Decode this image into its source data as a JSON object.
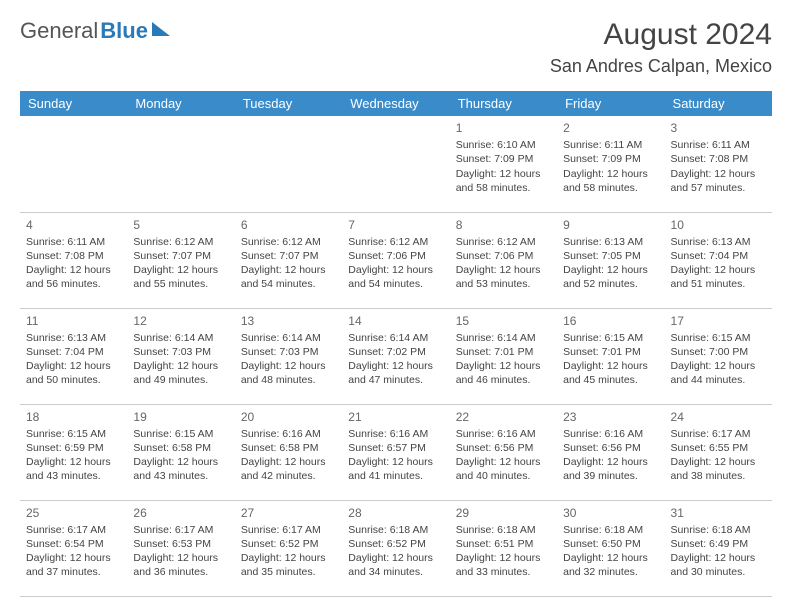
{
  "logo": {
    "part1": "General",
    "part2": "Blue"
  },
  "title": "August 2024",
  "location": "San Andres Calpan, Mexico",
  "colors": {
    "header_bg": "#3a8bc9",
    "header_fg": "#ffffff",
    "text": "#444444",
    "border": "#cccccc"
  },
  "weekdays": [
    "Sunday",
    "Monday",
    "Tuesday",
    "Wednesday",
    "Thursday",
    "Friday",
    "Saturday"
  ],
  "first_weekday_index": 4,
  "days": [
    {
      "n": 1,
      "sr": "6:10 AM",
      "ss": "7:09 PM",
      "dl": "12 hours and 58 minutes."
    },
    {
      "n": 2,
      "sr": "6:11 AM",
      "ss": "7:09 PM",
      "dl": "12 hours and 58 minutes."
    },
    {
      "n": 3,
      "sr": "6:11 AM",
      "ss": "7:08 PM",
      "dl": "12 hours and 57 minutes."
    },
    {
      "n": 4,
      "sr": "6:11 AM",
      "ss": "7:08 PM",
      "dl": "12 hours and 56 minutes."
    },
    {
      "n": 5,
      "sr": "6:12 AM",
      "ss": "7:07 PM",
      "dl": "12 hours and 55 minutes."
    },
    {
      "n": 6,
      "sr": "6:12 AM",
      "ss": "7:07 PM",
      "dl": "12 hours and 54 minutes."
    },
    {
      "n": 7,
      "sr": "6:12 AM",
      "ss": "7:06 PM",
      "dl": "12 hours and 54 minutes."
    },
    {
      "n": 8,
      "sr": "6:12 AM",
      "ss": "7:06 PM",
      "dl": "12 hours and 53 minutes."
    },
    {
      "n": 9,
      "sr": "6:13 AM",
      "ss": "7:05 PM",
      "dl": "12 hours and 52 minutes."
    },
    {
      "n": 10,
      "sr": "6:13 AM",
      "ss": "7:04 PM",
      "dl": "12 hours and 51 minutes."
    },
    {
      "n": 11,
      "sr": "6:13 AM",
      "ss": "7:04 PM",
      "dl": "12 hours and 50 minutes."
    },
    {
      "n": 12,
      "sr": "6:14 AM",
      "ss": "7:03 PM",
      "dl": "12 hours and 49 minutes."
    },
    {
      "n": 13,
      "sr": "6:14 AM",
      "ss": "7:03 PM",
      "dl": "12 hours and 48 minutes."
    },
    {
      "n": 14,
      "sr": "6:14 AM",
      "ss": "7:02 PM",
      "dl": "12 hours and 47 minutes."
    },
    {
      "n": 15,
      "sr": "6:14 AM",
      "ss": "7:01 PM",
      "dl": "12 hours and 46 minutes."
    },
    {
      "n": 16,
      "sr": "6:15 AM",
      "ss": "7:01 PM",
      "dl": "12 hours and 45 minutes."
    },
    {
      "n": 17,
      "sr": "6:15 AM",
      "ss": "7:00 PM",
      "dl": "12 hours and 44 minutes."
    },
    {
      "n": 18,
      "sr": "6:15 AM",
      "ss": "6:59 PM",
      "dl": "12 hours and 43 minutes."
    },
    {
      "n": 19,
      "sr": "6:15 AM",
      "ss": "6:58 PM",
      "dl": "12 hours and 43 minutes."
    },
    {
      "n": 20,
      "sr": "6:16 AM",
      "ss": "6:58 PM",
      "dl": "12 hours and 42 minutes."
    },
    {
      "n": 21,
      "sr": "6:16 AM",
      "ss": "6:57 PM",
      "dl": "12 hours and 41 minutes."
    },
    {
      "n": 22,
      "sr": "6:16 AM",
      "ss": "6:56 PM",
      "dl": "12 hours and 40 minutes."
    },
    {
      "n": 23,
      "sr": "6:16 AM",
      "ss": "6:56 PM",
      "dl": "12 hours and 39 minutes."
    },
    {
      "n": 24,
      "sr": "6:17 AM",
      "ss": "6:55 PM",
      "dl": "12 hours and 38 minutes."
    },
    {
      "n": 25,
      "sr": "6:17 AM",
      "ss": "6:54 PM",
      "dl": "12 hours and 37 minutes."
    },
    {
      "n": 26,
      "sr": "6:17 AM",
      "ss": "6:53 PM",
      "dl": "12 hours and 36 minutes."
    },
    {
      "n": 27,
      "sr": "6:17 AM",
      "ss": "6:52 PM",
      "dl": "12 hours and 35 minutes."
    },
    {
      "n": 28,
      "sr": "6:18 AM",
      "ss": "6:52 PM",
      "dl": "12 hours and 34 minutes."
    },
    {
      "n": 29,
      "sr": "6:18 AM",
      "ss": "6:51 PM",
      "dl": "12 hours and 33 minutes."
    },
    {
      "n": 30,
      "sr": "6:18 AM",
      "ss": "6:50 PM",
      "dl": "12 hours and 32 minutes."
    },
    {
      "n": 31,
      "sr": "6:18 AM",
      "ss": "6:49 PM",
      "dl": "12 hours and 30 minutes."
    }
  ],
  "labels": {
    "sunrise": "Sunrise:",
    "sunset": "Sunset:",
    "daylight": "Daylight:"
  }
}
